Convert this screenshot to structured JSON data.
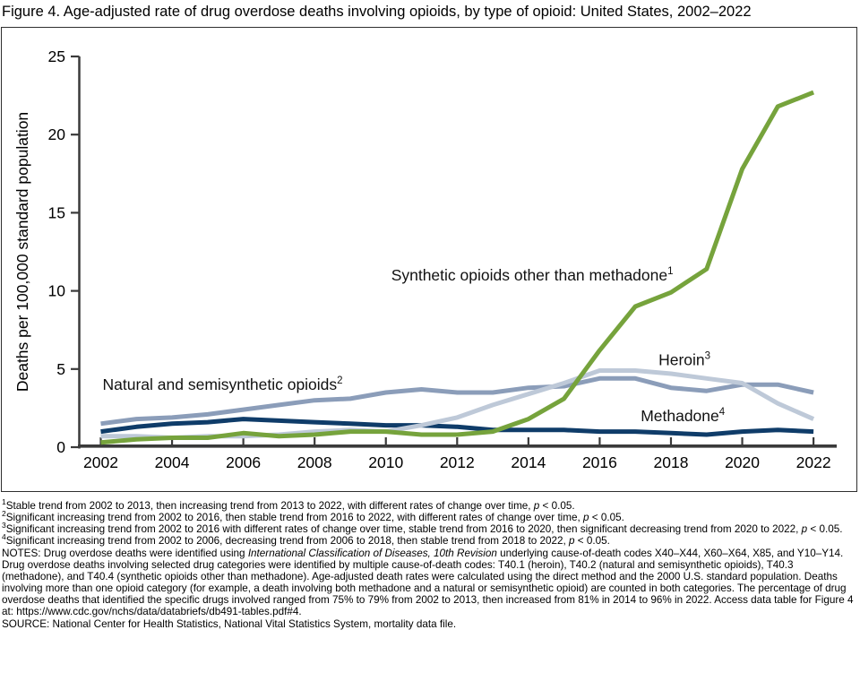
{
  "title": "Figure 4. Age-adjusted rate of drug overdose deaths involving opioids, by type of opioid: United States, 2002–2022",
  "colors": {
    "axis": "#3a3a3a",
    "frame": "#2f2f2f",
    "label_text": "#000000",
    "synthetic_green": "#76a33c",
    "heroin_light_blue": "#bec9d8",
    "natural_slate_blue": "#8b9db9",
    "methadone_navy": "#0f3c69"
  },
  "chart_data": {
    "type": "line",
    "title": "Figure 4. Age-adjusted rate of drug overdose deaths involving opioids, by type of opioid: United States, 2002–2022",
    "xlabel": "",
    "ylabel": "Deaths per 100,000 standard population",
    "ylim": [
      0,
      25
    ],
    "yticks": [
      0,
      5,
      10,
      15,
      20,
      25
    ],
    "xticks": [
      2002,
      2004,
      2006,
      2008,
      2010,
      2012,
      2014,
      2016,
      2018,
      2020,
      2022
    ],
    "grid": false,
    "legend": "inline-labels",
    "x": [
      2002,
      2003,
      2004,
      2005,
      2006,
      2007,
      2008,
      2009,
      2010,
      2011,
      2012,
      2013,
      2014,
      2015,
      2016,
      2017,
      2018,
      2019,
      2020,
      2021,
      2022
    ],
    "series": [
      {
        "name": "Methadone",
        "sup": "4",
        "color": "#0f3c69",
        "values": [
          1.0,
          1.3,
          1.5,
          1.6,
          1.8,
          1.7,
          1.6,
          1.5,
          1.4,
          1.4,
          1.3,
          1.1,
          1.1,
          1.1,
          1.0,
          1.0,
          0.9,
          0.8,
          1.0,
          1.1,
          1.0
        ],
        "label_at": {
          "x": 2017.15,
          "y": 2.0
        }
      },
      {
        "name": "Natural and semisynthetic opioids",
        "sup": "2",
        "color": "#8b9db9",
        "values": [
          1.5,
          1.8,
          1.9,
          2.1,
          2.4,
          2.7,
          3.0,
          3.1,
          3.5,
          3.7,
          3.5,
          3.5,
          3.8,
          3.9,
          4.4,
          4.4,
          3.8,
          3.6,
          4.0,
          4.0,
          3.5
        ],
        "label_at": {
          "x": 2002.05,
          "y": 4.0
        }
      },
      {
        "name": "Heroin",
        "sup": "3",
        "color": "#bec9d8",
        "values": [
          0.7,
          0.7,
          0.6,
          0.7,
          0.7,
          0.8,
          1.0,
          1.1,
          1.0,
          1.4,
          1.9,
          2.7,
          3.4,
          4.1,
          4.9,
          4.9,
          4.7,
          4.4,
          4.1,
          2.8,
          1.8
        ],
        "label_at": {
          "x": 2017.65,
          "y": 5.6
        }
      },
      {
        "name": "Synthetic opioids other than methadone",
        "sup": "1",
        "color": "#76a33c",
        "values": [
          0.3,
          0.5,
          0.6,
          0.6,
          0.9,
          0.7,
          0.8,
          1.0,
          1.0,
          0.8,
          0.8,
          1.0,
          1.8,
          3.1,
          6.2,
          9.0,
          9.9,
          11.4,
          17.8,
          21.8,
          22.7
        ],
        "label_at": {
          "x": 2010.15,
          "y": 11.0
        }
      }
    ]
  },
  "footnotes": [
    {
      "sup": "1",
      "segments": [
        {
          "t": "Stable trend from 2002 to 2013, then increasing trend from 2013 to 2022, with different rates of change over time, "
        },
        {
          "t": "p",
          "i": true
        },
        {
          "t": " < 0.05."
        }
      ]
    },
    {
      "sup": "2",
      "segments": [
        {
          "t": "Significant increasing trend from 2002 to 2016, then stable trend from 2016 to 2022, with different rates of change over time, "
        },
        {
          "t": "p",
          "i": true
        },
        {
          "t": " < 0.05."
        }
      ]
    },
    {
      "sup": "3",
      "segments": [
        {
          "t": "Significant increasing trend from 2002 to 2016 with different rates of change over time, stable trend from 2016 to 2020, then significant decreasing trend from 2020 to 2022, "
        },
        {
          "t": "p",
          "i": true
        },
        {
          "t": " < 0.05."
        }
      ]
    },
    {
      "sup": "4",
      "segments": [
        {
          "t": "Significant increasing trend from 2002 to 2006, decreasing trend from 2006 to 2018, then stable trend from 2018 to 2022, "
        },
        {
          "t": "p",
          "i": true
        },
        {
          "t": " < 0.05."
        }
      ]
    }
  ],
  "notes": {
    "segments": [
      {
        "t": "NOTES: Drug overdose deaths were identified using "
      },
      {
        "t": "International Classification of Diseases, 10th Revision",
        "i": true
      },
      {
        "t": " underlying cause-of-death codes X40–X44, X60–X64, X85, and Y10–Y14. Drug overdose deaths involving selected drug categories were identified by multiple cause-of-death codes: T40.1 (heroin), T40.2 (natural and semisynthetic opioids), T40.3 (methadone), and T40.4 (synthetic opioids other than methadone). Age-adjusted death rates were calculated using the direct method and the 2000 U.S. standard population. Deaths involving more than one opioid category (for example, a death involving both methadone and a natural or semisynthetic opioid) are counted in both categories. The percentage of drug overdose deaths that identified the specific drugs involved ranged from 75% to 79% from 2002 to 2013, then increased from 81% in 2014 to 96% in 2022. Access data table for Figure 4 at: https://www.cdc.gov/nchs/data/databriefs/db491-tables.pdf#4."
      }
    ]
  },
  "source": "SOURCE: National Center for Health Statistics, National Vital Statistics System, mortality data file."
}
